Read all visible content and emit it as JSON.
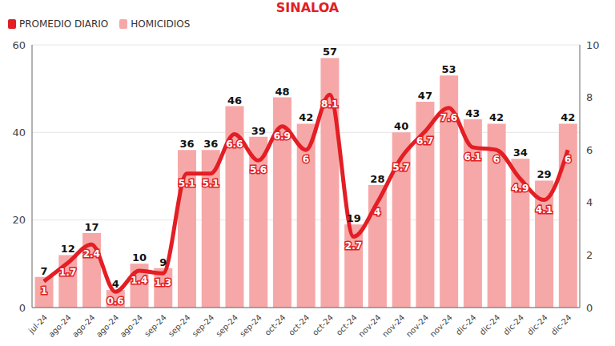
{
  "chart_data": {
    "type": "bar",
    "title": "SINALOA",
    "categories": [
      "jul-24",
      "ago-24",
      "ago-24",
      "ago-24",
      "ago-24",
      "sep-24",
      "sep-24",
      "sep-24",
      "sep-24",
      "sep-24",
      "oct-24",
      "oct-24",
      "oct-24",
      "oct-24",
      "nov-24",
      "nov-24",
      "nov-24",
      "nov-24",
      "dic-24",
      "dic-24",
      "dic-24",
      "dic-24",
      "dic-24"
    ],
    "series": [
      {
        "name": "PROMEDIO DIARIO",
        "type": "line",
        "axis": "y2",
        "color": "#e31e24",
        "values": [
          1,
          1.7,
          2.4,
          0.6,
          1.4,
          1.3,
          5.1,
          5.1,
          6.6,
          5.6,
          6.9,
          6,
          8.1,
          2.7,
          4,
          5.7,
          6.7,
          7.6,
          6.1,
          6,
          4.9,
          4.1,
          6
        ]
      },
      {
        "name": "HOMICIDIOS",
        "type": "bar",
        "color": "#f6a8a8",
        "values": [
          7,
          12,
          17,
          4,
          10,
          9,
          36,
          36,
          46,
          39,
          48,
          42,
          57,
          19,
          28,
          40,
          47,
          53,
          43,
          42,
          34,
          29,
          42
        ]
      }
    ],
    "ylim": [
      0,
      60
    ],
    "yticks": [
      0,
      20,
      40,
      60
    ],
    "y2lim": [
      0,
      10
    ],
    "y2ticks": [
      0,
      2,
      4,
      6,
      8,
      10
    ],
    "grid": true,
    "data_labels": true,
    "legend": "top-left"
  }
}
